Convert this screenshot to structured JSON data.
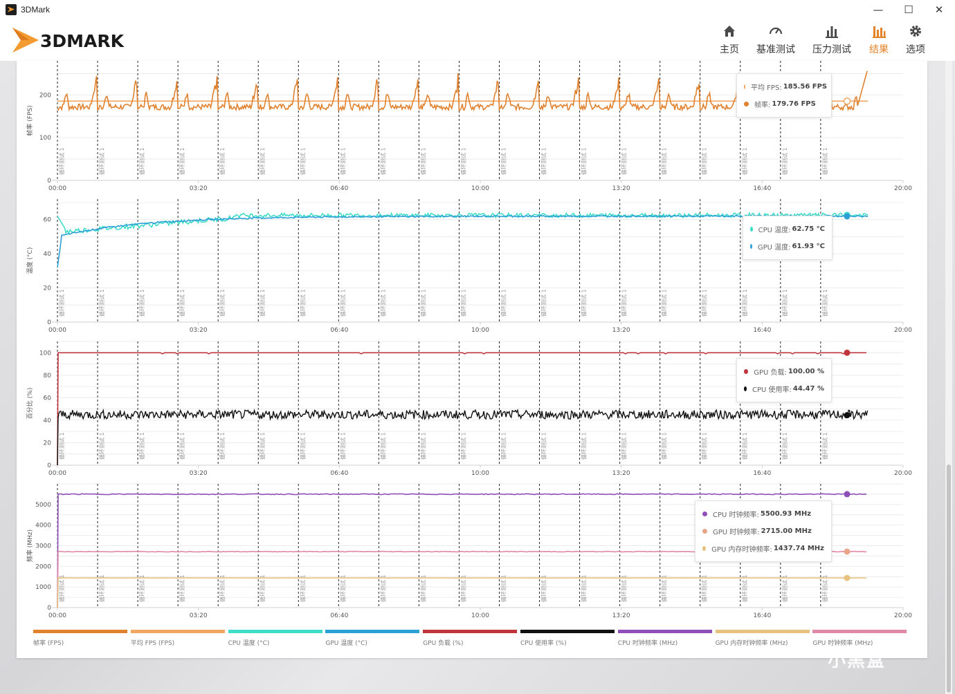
{
  "window": {
    "title": "3DMark",
    "minimize": "—",
    "maximize": "☐",
    "close": "✕"
  },
  "brand": {
    "name": "3DMARK"
  },
  "nav": [
    {
      "label": "主页",
      "icon": "home-icon"
    },
    {
      "label": "基准测试",
      "icon": "gauge-icon"
    },
    {
      "label": "压力测试",
      "icon": "bar-chart-icon"
    },
    {
      "label": "结果",
      "icon": "results-chart-icon",
      "active": true
    },
    {
      "label": "选项",
      "icon": "gear-icon"
    }
  ],
  "colors": {
    "accent": "#e38227",
    "fps": "#e0812e",
    "avg_fps": "#f0a560",
    "cpu_temp": "#3fdcc8",
    "gpu_temp": "#2b9fd6",
    "gpu_load": "#c0343c",
    "cpu_usage": "#111111",
    "cpu_clock": "#8e4fb8",
    "gpu_mem_clock": "#e6c27e",
    "gpu_clock": "#e088a8"
  },
  "marker_label": "循环测试 1",
  "x_ticks": [
    "00:00",
    "03:20",
    "06:40",
    "10:00",
    "13:20",
    "16:40",
    "20:00"
  ],
  "tooltips": {
    "fps": [
      {
        "label": "平均 FPS:",
        "value": "185.56 FPS",
        "color": "#f0a560",
        "hollow": true
      },
      {
        "label": "帧率:",
        "value": "179.76 FPS",
        "color": "#e0812e"
      }
    ],
    "temp": [
      {
        "label": "CPU 温度:",
        "value": "62.75 °C",
        "color": "#3fdcc8"
      },
      {
        "label": "GPU 温度:",
        "value": "61.93 °C",
        "color": "#2b9fd6"
      }
    ],
    "usage": [
      {
        "label": "GPU 负载:",
        "value": "100.00 %",
        "color": "#c0343c"
      },
      {
        "label": "CPU 使用率:",
        "value": "44.47 %",
        "color": "#111111"
      }
    ],
    "clock": [
      {
        "label": "CPU 时钟频率:",
        "value": "5500.93 MHz",
        "color": "#8e4fb8"
      },
      {
        "label": "GPU 时钟频率:",
        "value": "2715.00 MHz",
        "color": "#e8a588"
      },
      {
        "label": "GPU 内存时钟频率:",
        "value": "1437.74 MHz",
        "color": "#e6c27e"
      }
    ]
  },
  "legend": [
    {
      "label": "帧率 (FPS)",
      "color": "#e0812e"
    },
    {
      "label": "平均 FPS (FPS)",
      "color": "#f0a560"
    },
    {
      "label": "CPU 温度 (°C)",
      "color": "#3fdcc8"
    },
    {
      "label": "GPU 温度 (°C)",
      "color": "#2b9fd6"
    },
    {
      "label": "GPU 负载 (%)",
      "color": "#c0343c"
    },
    {
      "label": "CPU 使用率 (%)",
      "color": "#111111"
    },
    {
      "label": "CPU 时钟频率 (MHz)",
      "color": "#8e4fb8"
    },
    {
      "label": "GPU 内存时钟频率 (MHz)",
      "color": "#e6c27e"
    },
    {
      "label": "GPU 时钟频率 (MHz)",
      "color": "#e088a8"
    }
  ],
  "watermark": "小黑盒",
  "chart_data": [
    {
      "type": "line",
      "ylabel": "帧率 (FPS)",
      "yticks": [
        0,
        100,
        200
      ],
      "ylim": [
        0,
        280
      ],
      "xlim_seconds": [
        0,
        1200
      ],
      "loop_markers_seconds": [
        0,
        57,
        114,
        171,
        228,
        285,
        342,
        399,
        456,
        513,
        570,
        627,
        684,
        741,
        798,
        855,
        912,
        969,
        1026,
        1083
      ],
      "series": [
        {
          "name": "帧率",
          "unit": "FPS",
          "baseline": 172,
          "loop_peak": 265,
          "last": 179.76
        },
        {
          "name": "平均 FPS",
          "unit": "FPS",
          "value": 185.56
        }
      ]
    },
    {
      "type": "line",
      "ylabel": "温度 (°C)",
      "yticks": [
        0,
        20,
        40,
        60
      ],
      "ylim": [
        0,
        72
      ],
      "xlim_seconds": [
        0,
        1200
      ],
      "series": [
        {
          "name": "CPU 温度",
          "unit": "°C",
          "start": 62,
          "dip": 53,
          "steady": 62,
          "last": 62.75
        },
        {
          "name": "GPU 温度",
          "unit": "°C",
          "start": 32,
          "steady": 62,
          "last": 61.93
        }
      ]
    },
    {
      "type": "line",
      "ylabel": "百分比 (%)",
      "yticks": [
        0,
        20,
        40,
        60,
        80,
        100
      ],
      "ylim": [
        0,
        110
      ],
      "xlim_seconds": [
        0,
        1200
      ],
      "series": [
        {
          "name": "GPU 负载",
          "unit": "%",
          "steady": 100,
          "last": 100.0
        },
        {
          "name": "CPU 使用率",
          "unit": "%",
          "steady": 45,
          "last": 44.47
        }
      ]
    },
    {
      "type": "line",
      "ylabel": "频率 (MHz)",
      "yticks": [
        0,
        1000,
        2000,
        3000,
        4000,
        5000
      ],
      "ylim": [
        0,
        6000
      ],
      "xlim_seconds": [
        0,
        1200
      ],
      "series": [
        {
          "name": "CPU 时钟频率",
          "unit": "MHz",
          "steady": 5500,
          "last": 5500.93
        },
        {
          "name": "GPU 时钟频率",
          "unit": "MHz",
          "steady": 2715,
          "last": 2715.0
        },
        {
          "name": "GPU 内存时钟频率",
          "unit": "MHz",
          "steady": 1437,
          "last": 1437.74
        }
      ]
    }
  ]
}
